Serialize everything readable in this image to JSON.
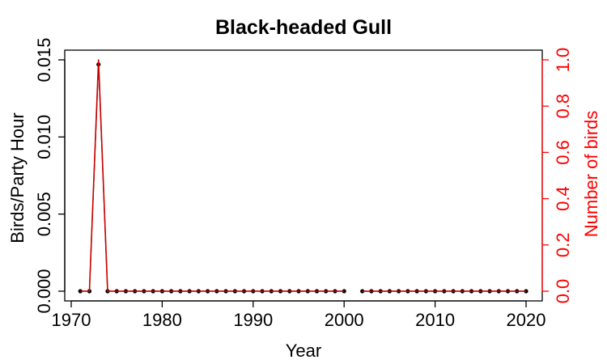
{
  "chart_data": {
    "type": "line",
    "title": "Black-headed Gull",
    "xlabel": "Year",
    "ylabel": "Birds/Party Hour",
    "ylabel_right": "Number of birds",
    "xlim": [
      1970,
      2020
    ],
    "ylim": [
      0,
      0.015
    ],
    "ylim_right": [
      0,
      1
    ],
    "x_ticks": [
      "1970",
      "1980",
      "1990",
      "2000",
      "2010",
      "2020"
    ],
    "y_ticks": [
      "0.000",
      "0.005",
      "0.010",
      "0.015"
    ],
    "y_ticks_right": [
      "0.0",
      "0.2",
      "0.4",
      "0.6",
      "0.8",
      "1.0"
    ],
    "grid": false,
    "colors": {
      "primary_line": "#000000",
      "secondary_line": "#cc0000",
      "right_axis": "#ff0000"
    },
    "series": [
      {
        "axis": "left",
        "x": [
          1971,
          1972,
          1973,
          1974,
          1975,
          1976,
          1977,
          1978,
          1979,
          1980,
          1981,
          1982,
          1983,
          1984,
          1985,
          1986,
          1987,
          1988,
          1989,
          1990,
          1991,
          1992,
          1993,
          1994,
          1995,
          1996,
          1997,
          1998,
          1999,
          2000,
          2002,
          2003,
          2004,
          2005,
          2006,
          2007,
          2008,
          2009,
          2010,
          2011,
          2012,
          2013,
          2014,
          2015,
          2016,
          2017,
          2018,
          2019,
          2020
        ],
        "values": [
          0,
          0,
          0.0147,
          0,
          0,
          0,
          0,
          0,
          0,
          0,
          0,
          0,
          0,
          0,
          0,
          0,
          0,
          0,
          0,
          0,
          0,
          0,
          0,
          0,
          0,
          0,
          0,
          0,
          0,
          0,
          0,
          0,
          0,
          0,
          0,
          0,
          0,
          0,
          0,
          0,
          0,
          0,
          0,
          0,
          0,
          0,
          0,
          0,
          0
        ]
      },
      {
        "axis": "right",
        "x": [
          1971,
          1972,
          1973,
          1974,
          1975,
          1976,
          1977,
          1978,
          1979,
          1980,
          1981,
          1982,
          1983,
          1984,
          1985,
          1986,
          1987,
          1988,
          1989,
          1990,
          1991,
          1992,
          1993,
          1994,
          1995,
          1996,
          1997,
          1998,
          1999,
          2000,
          2002,
          2003,
          2004,
          2005,
          2006,
          2007,
          2008,
          2009,
          2010,
          2011,
          2012,
          2013,
          2014,
          2015,
          2016,
          2017,
          2018,
          2019,
          2020
        ],
        "values": [
          0,
          0,
          1,
          0,
          0,
          0,
          0,
          0,
          0,
          0,
          0,
          0,
          0,
          0,
          0,
          0,
          0,
          0,
          0,
          0,
          0,
          0,
          0,
          0,
          0,
          0,
          0,
          0,
          0,
          0,
          0,
          0,
          0,
          0,
          0,
          0,
          0,
          0,
          0,
          0,
          0,
          0,
          0,
          0,
          0,
          0,
          0,
          0,
          0
        ]
      }
    ]
  }
}
